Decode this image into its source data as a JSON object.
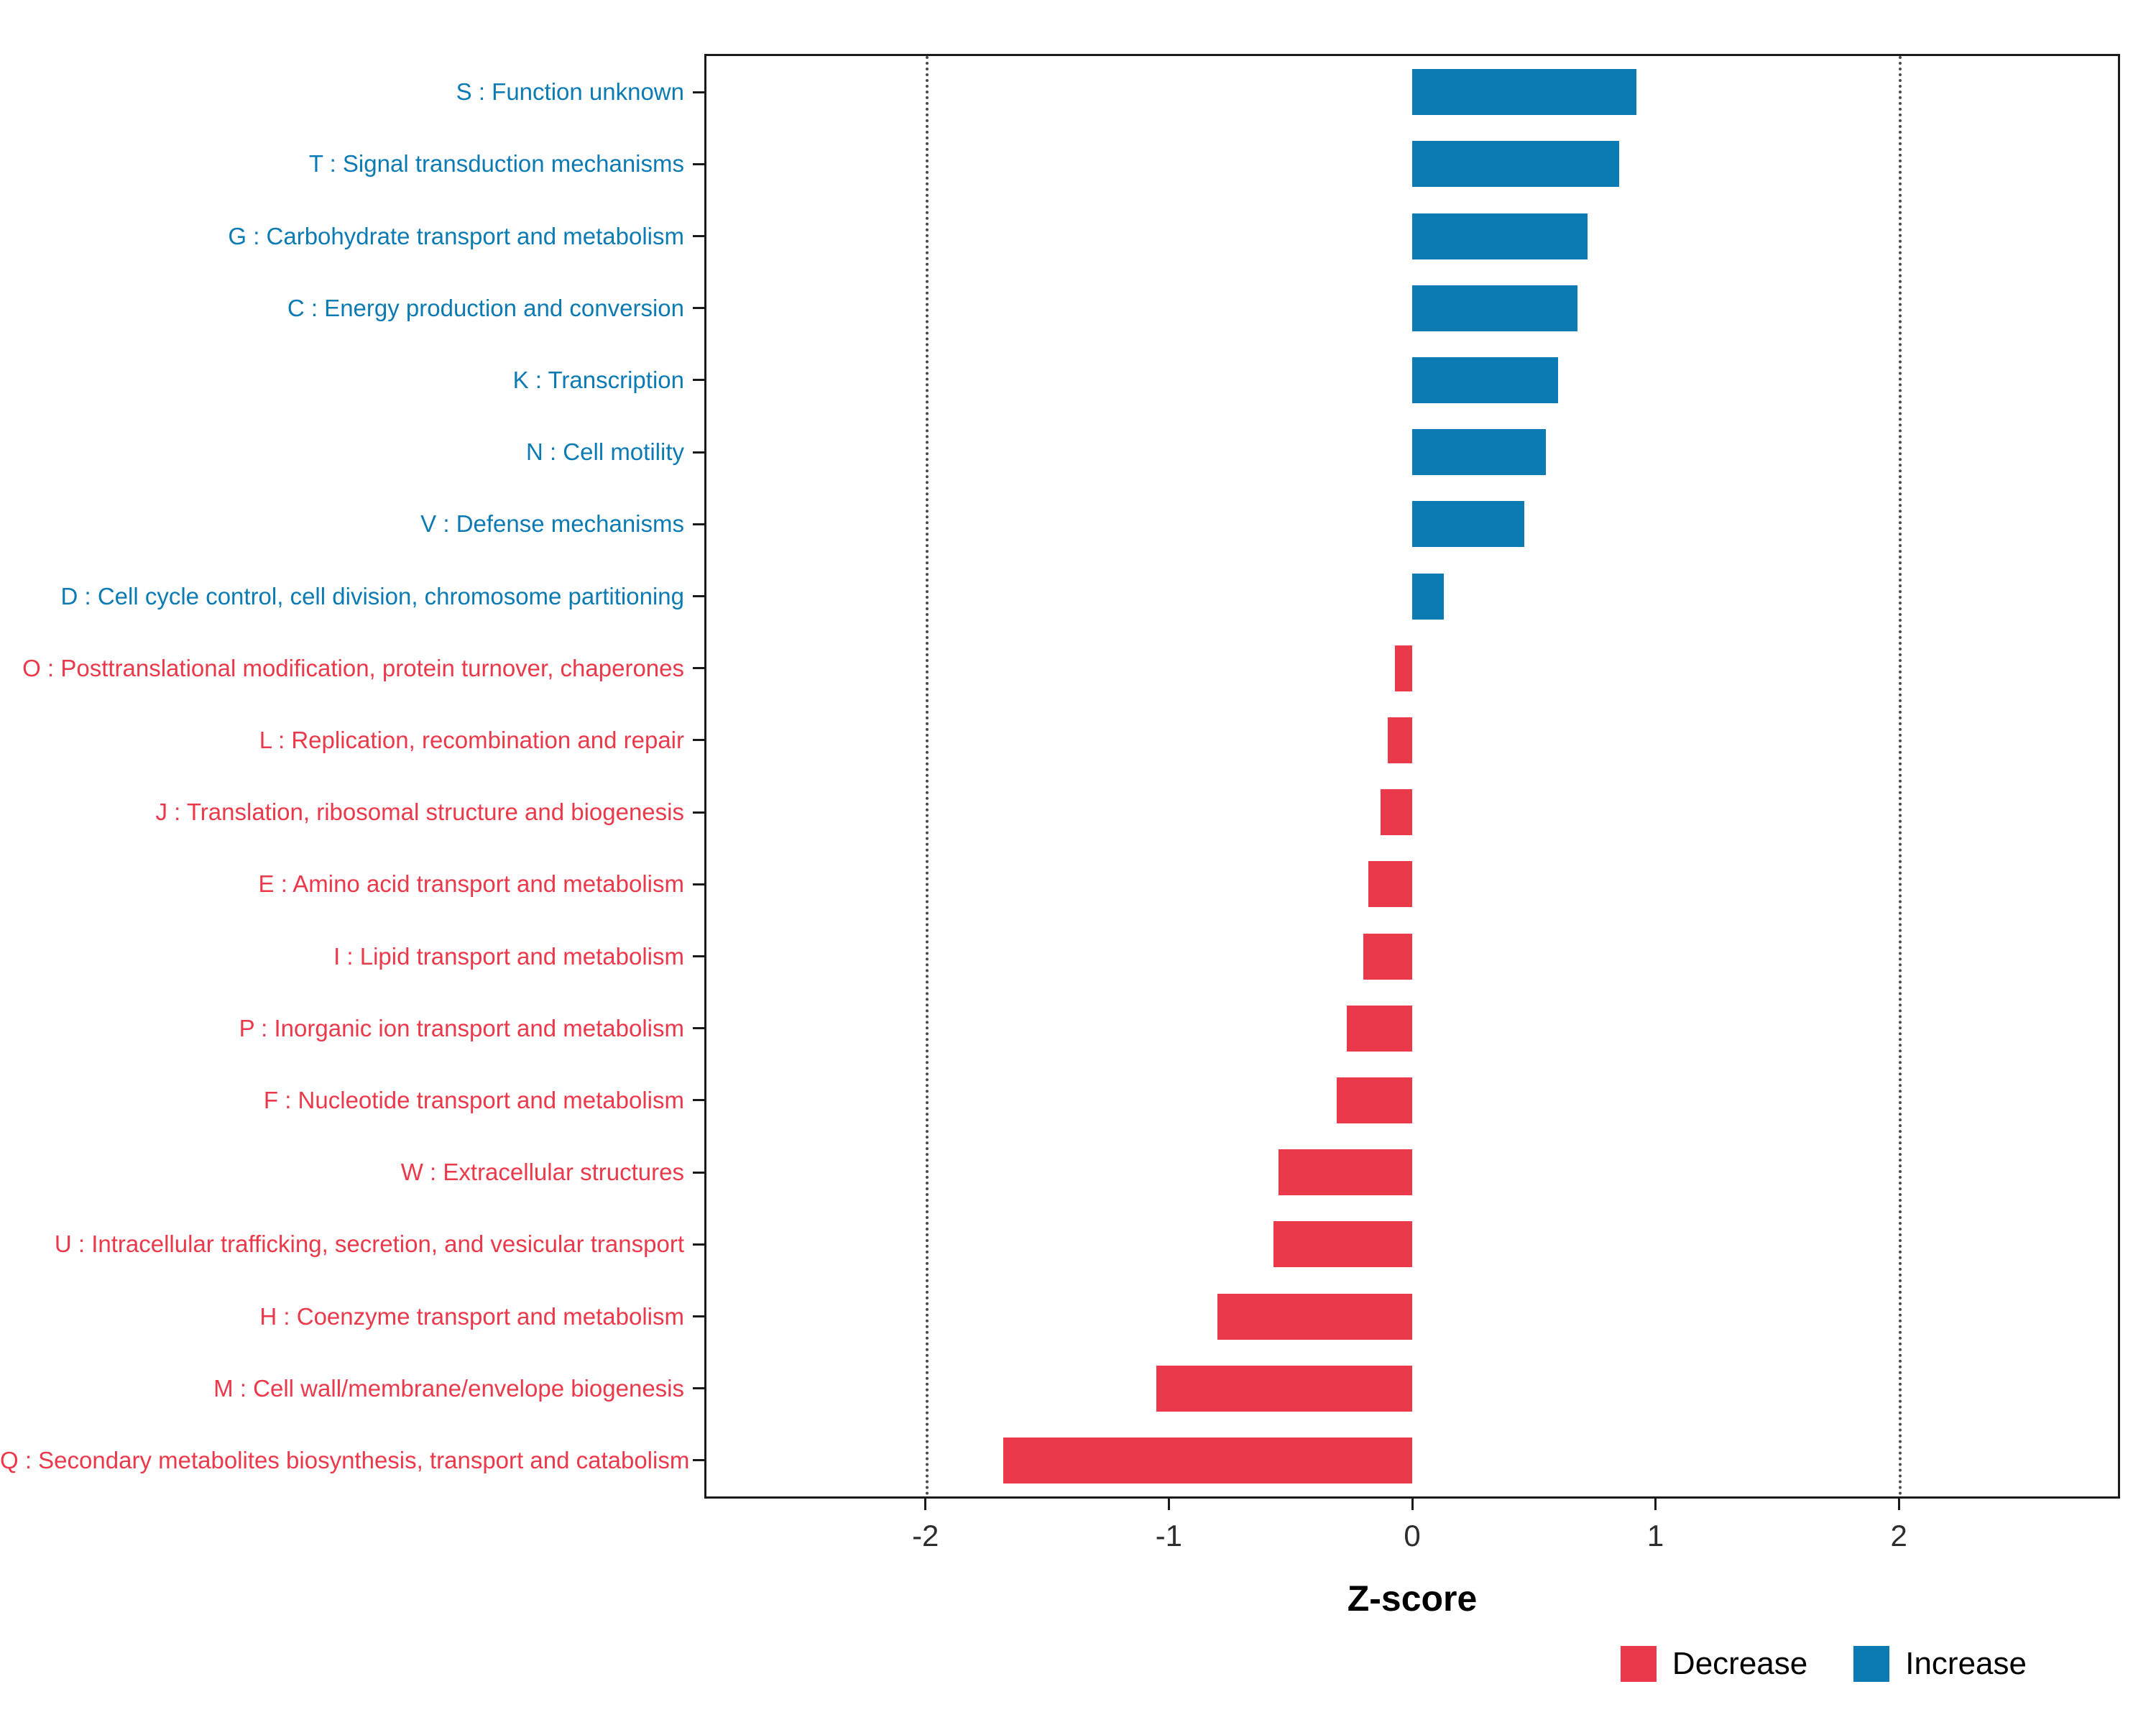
{
  "chart_data": {
    "type": "bar",
    "orientation": "horizontal",
    "title": "",
    "xlabel": "Z-score",
    "ylabel": "",
    "xlim": [
      -2.9,
      2.9
    ],
    "x_ticks": [
      -2,
      -1,
      0,
      1,
      2
    ],
    "reference_lines": [
      -2,
      2
    ],
    "grid": false,
    "legend_position": "bottom-right",
    "categories": [
      "S : Function unknown",
      "T : Signal transduction mechanisms",
      "G : Carbohydrate transport and metabolism",
      "C : Energy production and conversion",
      "K : Transcription",
      "N : Cell motility",
      "V : Defense mechanisms",
      "D : Cell cycle control, cell division, chromosome partitioning",
      "O : Posttranslational modification, protein turnover, chaperones",
      "L : Replication, recombination and repair",
      "J : Translation, ribosomal structure and biogenesis",
      "E : Amino acid transport and metabolism",
      "I : Lipid transport and metabolism",
      "P : Inorganic ion transport and metabolism",
      "F : Nucleotide transport and metabolism",
      "W : Extracellular structures",
      "U : Intracellular trafficking, secretion, and vesicular transport",
      "H : Coenzyme transport and metabolism",
      "M : Cell wall/membrane/envelope biogenesis",
      "Q : Secondary metabolites biosynthesis, transport and catabolism"
    ],
    "values": [
      0.92,
      0.85,
      0.72,
      0.68,
      0.6,
      0.55,
      0.46,
      0.13,
      -0.07,
      -0.1,
      -0.13,
      -0.18,
      -0.2,
      -0.27,
      -0.31,
      -0.55,
      -0.57,
      -0.8,
      -1.05,
      -1.68
    ],
    "colors": {
      "increase": "#0C7BB3",
      "decrease": "#EA394A"
    },
    "legend": [
      {
        "label": "Decrease",
        "color": "#EA394A"
      },
      {
        "label": "Increase",
        "color": "#0C7BB3"
      }
    ]
  }
}
